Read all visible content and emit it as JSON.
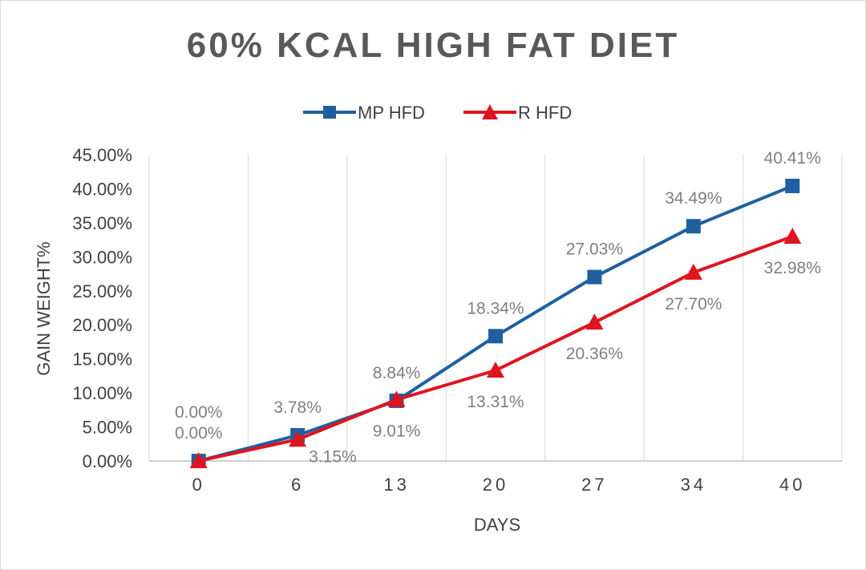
{
  "chart_data": {
    "type": "line",
    "title": "60% KCAL HIGH FAT DIET",
    "xlabel": "DAYS",
    "ylabel": "GAIN WEIGHT%",
    "categories": [
      "0",
      "6",
      "13",
      "20",
      "27",
      "34",
      "40"
    ],
    "ylim": [
      0,
      45
    ],
    "yticks": [
      "0.00%",
      "5.00%",
      "10.00%",
      "15.00%",
      "20.00%",
      "25.00%",
      "30.00%",
      "35.00%",
      "40.00%",
      "45.00%"
    ],
    "grid": "vertical",
    "legend": "top",
    "series": [
      {
        "name": "MP HFD",
        "color": "#1f5fa0",
        "marker": "square",
        "values": [
          0.0,
          3.78,
          8.84,
          18.34,
          27.03,
          34.49,
          40.41
        ],
        "labels": [
          "0.00%",
          "3.78%",
          "8.84%",
          "18.34%",
          "27.03%",
          "34.49%",
          "40.41%"
        ]
      },
      {
        "name": "R HFD",
        "color": "#e0141e",
        "marker": "triangle",
        "values": [
          0.0,
          3.15,
          9.01,
          13.31,
          20.36,
          27.7,
          32.98
        ],
        "labels": [
          "0.00%",
          "3.15%",
          "9.01%",
          "13.31%",
          "20.36%",
          "27.70%",
          "32.98%"
        ]
      }
    ]
  }
}
